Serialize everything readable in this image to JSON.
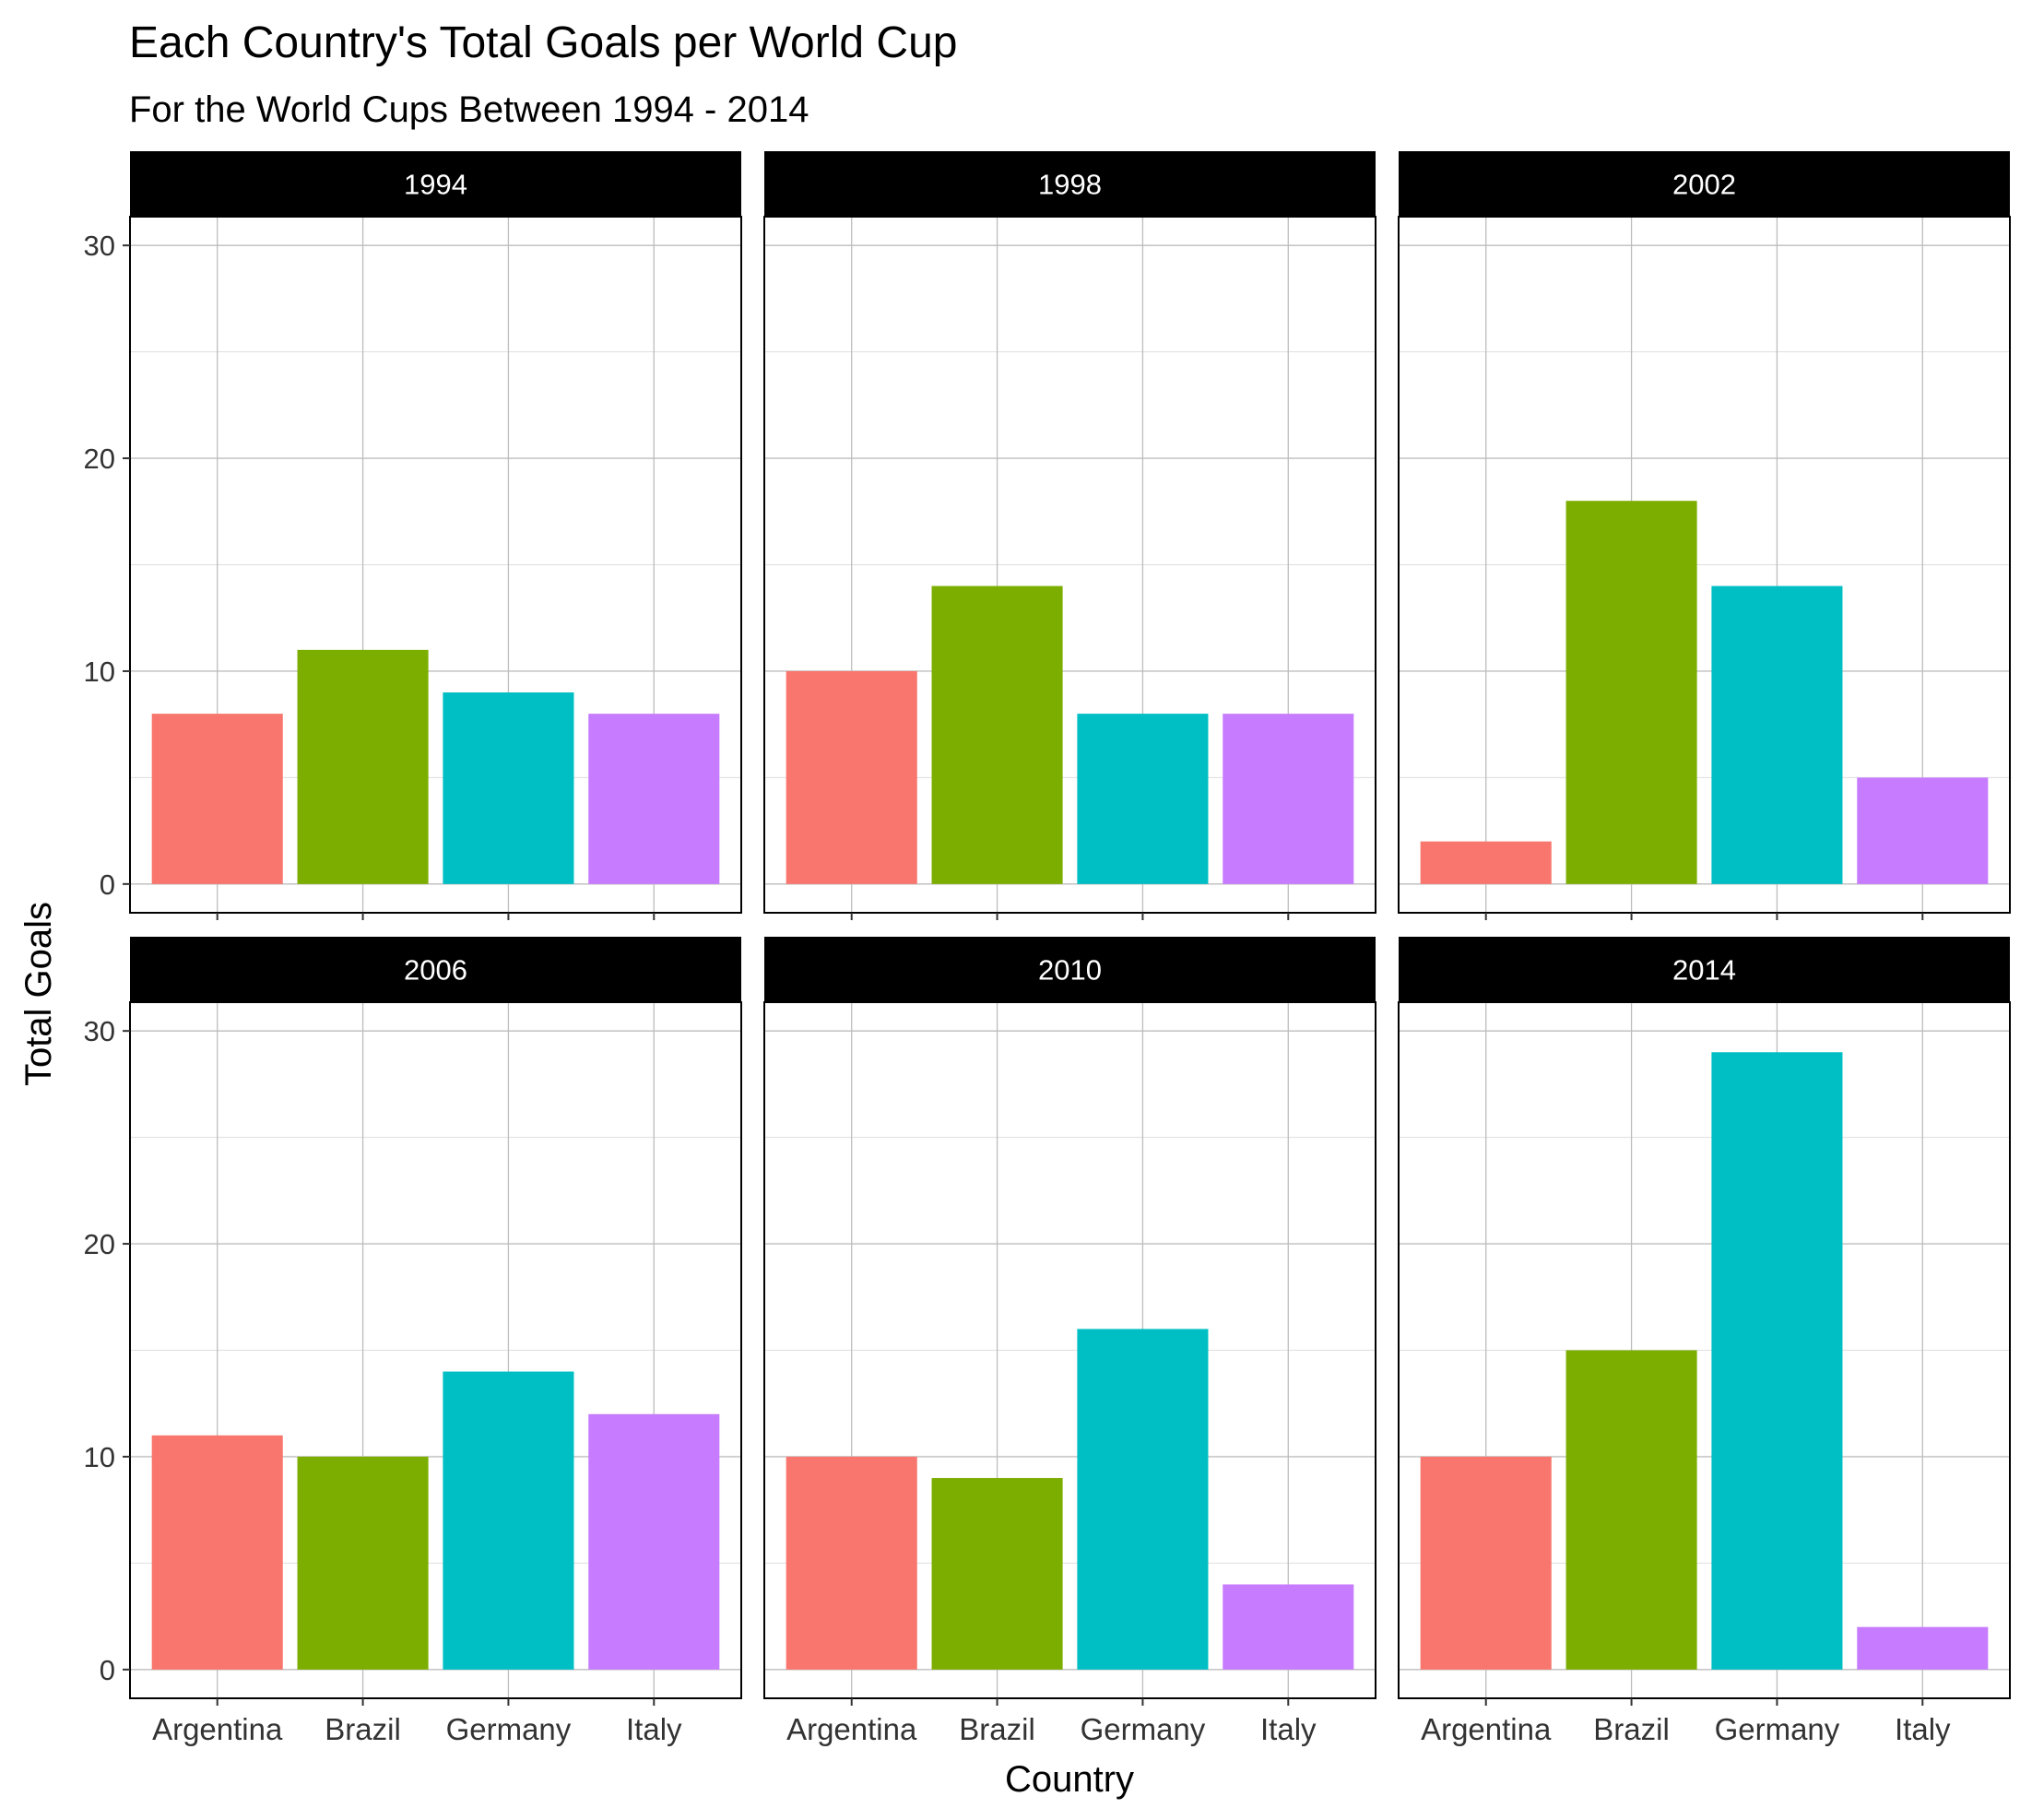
{
  "chart_data": {
    "type": "bar",
    "title": "Each Country's Total Goals per World Cup",
    "subtitle": "For the World Cups Between 1994 - 2014",
    "xlabel": "Country",
    "ylabel": "Total Goals",
    "ylim": [
      0,
      30
    ],
    "y_ticks": [
      "0",
      "10",
      "20",
      "30"
    ],
    "categories": [
      "Argentina",
      "Brazil",
      "Germany",
      "Italy"
    ],
    "colors": [
      "#F8766D",
      "#7CAE00",
      "#00BFC4",
      "#C77CFF"
    ],
    "legend": "none",
    "grid": true,
    "facets": [
      {
        "label": "1994",
        "values": [
          8,
          11,
          9,
          8
        ]
      },
      {
        "label": "1998",
        "values": [
          10,
          14,
          8,
          8
        ]
      },
      {
        "label": "2002",
        "values": [
          2,
          18,
          14,
          5
        ]
      },
      {
        "label": "2006",
        "values": [
          11,
          10,
          14,
          12
        ]
      },
      {
        "label": "2010",
        "values": [
          10,
          9,
          16,
          4
        ]
      },
      {
        "label": "2014",
        "values": [
          10,
          15,
          29,
          2
        ]
      }
    ]
  }
}
